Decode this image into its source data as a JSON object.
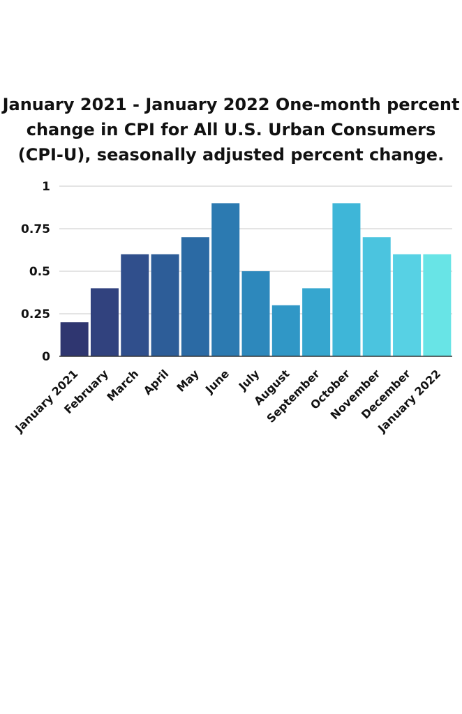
{
  "chart_data": {
    "type": "bar",
    "title_lines": [
      "January 2021 - January 2022 One-month percent",
      "change in CPI for All U.S. Urban Consumers",
      "(CPI-U), seasonally adjusted percent change."
    ],
    "xlabel": "",
    "ylabel": "",
    "categories": [
      "January 2021",
      "February",
      "March",
      "April",
      "May",
      "June",
      "July",
      "August",
      "September",
      "October",
      "November",
      "December",
      "January 2022"
    ],
    "values": [
      0.2,
      0.4,
      0.6,
      0.6,
      0.7,
      0.9,
      0.5,
      0.3,
      0.4,
      0.9,
      0.7,
      0.6,
      0.6
    ],
    "ylim": [
      0,
      1
    ],
    "yticks": [
      "0",
      "0.25",
      "0.5",
      "0.75",
      "1"
    ],
    "ytick_values": [
      0,
      0.25,
      0.5,
      0.75,
      1
    ],
    "grid": true,
    "legend": "none",
    "colors": [
      "#2f3670",
      "#31427e",
      "#304f8c",
      "#2d5d98",
      "#2b6aa4",
      "#2c7ab1",
      "#2d88bc",
      "#3097c6",
      "#36a6cf",
      "#3eb6d8",
      "#4bc4df",
      "#57d1e4",
      "#68e4e6"
    ],
    "grid_color": "#c8c8c8",
    "axis_color": "#333333"
  }
}
